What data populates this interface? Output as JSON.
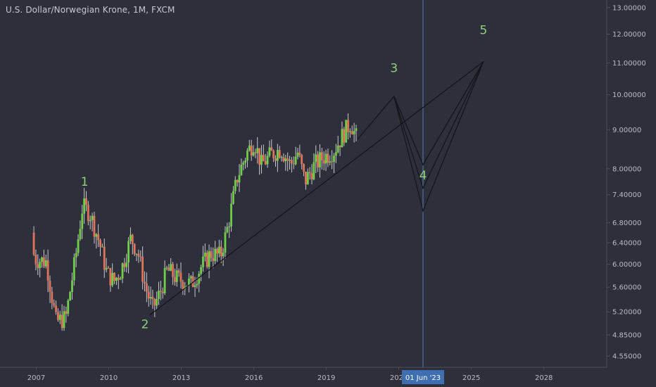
{
  "header": {
    "title": "U.S. Dollar/Norwegian Krone, 1M, FXCM"
  },
  "colors": {
    "background": "#2d2f3b",
    "axis_line": "#4a4d5c",
    "axis_text": "#b9bcc8",
    "candle_up": "#6fcf46",
    "candle_down": "#e0735a",
    "wick": "#c9c9c9",
    "wave_line": "#14161c",
    "wave_label": "#8fd17a",
    "cursor_line": "#5b7bb6",
    "cursor_badge": "#3f6fb0"
  },
  "chart_data": {
    "type": "candlestick",
    "title": "U.S. Dollar/Norwegian Krone, 1M, FXCM",
    "y_scale": "log",
    "ylim": [
      4.4,
      13.3
    ],
    "xlim": [
      2005.5,
      2030.6
    ],
    "x_ticks": [
      {
        "x": 2007,
        "label": "2007"
      },
      {
        "x": 2010,
        "label": "2010"
      },
      {
        "x": 2013,
        "label": "2013"
      },
      {
        "x": 2016,
        "label": "2016"
      },
      {
        "x": 2019,
        "label": "2019"
      },
      {
        "x": 2022,
        "label": "2022"
      },
      {
        "x": 2025,
        "label": "2025"
      },
      {
        "x": 2028,
        "label": "2028"
      }
    ],
    "y_ticks": [
      {
        "v": 13.0,
        "label": "13.00000"
      },
      {
        "v": 12.0,
        "label": "12.00000"
      },
      {
        "v": 11.0,
        "label": "11.00000"
      },
      {
        "v": 10.0,
        "label": "10.00000"
      },
      {
        "v": 9.0,
        "label": "9.00000"
      },
      {
        "v": 8.0,
        "label": "8.00000"
      },
      {
        "v": 7.4,
        "label": "7.40000"
      },
      {
        "v": 6.8,
        "label": "6.80000"
      },
      {
        "v": 6.4,
        "label": "6.40000"
      },
      {
        "v": 6.0,
        "label": "6.00000"
      },
      {
        "v": 5.6,
        "label": "5.60000"
      },
      {
        "v": 5.2,
        "label": "5.20000"
      },
      {
        "v": 4.85,
        "label": "4.85000"
      },
      {
        "v": 4.55,
        "label": "4.55000"
      }
    ],
    "price_path": [
      [
        2006.9,
        6.6
      ],
      [
        2007.0,
        6.1
      ],
      [
        2007.5,
        6.05
      ],
      [
        2007.9,
        5.05
      ],
      [
        2008.3,
        5.1
      ],
      [
        2008.7,
        6.1
      ],
      [
        2009.0,
        7.15
      ],
      [
        2009.3,
        7.0
      ],
      [
        2009.7,
        6.4
      ],
      [
        2010.0,
        5.85
      ],
      [
        2010.3,
        5.7
      ],
      [
        2010.6,
        5.9
      ],
      [
        2011.0,
        6.5
      ],
      [
        2011.3,
        6.2
      ],
      [
        2011.6,
        5.6
      ],
      [
        2011.9,
        5.25
      ],
      [
        2012.2,
        5.5
      ],
      [
        2012.5,
        5.9
      ],
      [
        2012.9,
        5.75
      ],
      [
        2013.2,
        5.7
      ],
      [
        2013.5,
        5.65
      ],
      [
        2013.9,
        5.95
      ],
      [
        2014.3,
        6.2
      ],
      [
        2014.7,
        6.15
      ],
      [
        2015.0,
        6.7
      ],
      [
        2015.4,
        7.8
      ],
      [
        2015.8,
        8.4
      ],
      [
        2016.1,
        8.7
      ],
      [
        2016.4,
        8.1
      ],
      [
        2016.8,
        8.35
      ],
      [
        2017.2,
        8.5
      ],
      [
        2017.6,
        8.1
      ],
      [
        2017.9,
        8.4
      ],
      [
        2018.2,
        7.7
      ],
      [
        2018.6,
        8.1
      ],
      [
        2019.0,
        8.3
      ],
      [
        2019.4,
        8.45
      ],
      [
        2019.8,
        8.9
      ],
      [
        2020.1,
        9.2
      ],
      [
        2020.3,
        8.8
      ]
    ],
    "wave_lines": [
      {
        "name": "trendline-2-to-5",
        "points": [
          [
            2011.7,
            5.15
          ],
          [
            2025.5,
            11.05
          ]
        ]
      },
      {
        "name": "wave-projection",
        "points": [
          [
            2020.3,
            8.75
          ],
          [
            2021.8,
            9.95
          ],
          [
            2023.0,
            8.1
          ],
          [
            2025.5,
            11.05
          ]
        ]
      },
      {
        "name": "wave-4-alt-a",
        "points": [
          [
            2021.8,
            9.95
          ],
          [
            2023.0,
            7.55
          ],
          [
            2025.5,
            11.05
          ]
        ]
      },
      {
        "name": "wave-4-alt-b",
        "points": [
          [
            2021.8,
            9.95
          ],
          [
            2023.0,
            7.05
          ],
          [
            2025.5,
            11.05
          ]
        ]
      }
    ],
    "wave_labels": [
      {
        "label": "1",
        "x": 2009.0,
        "v": 7.6
      },
      {
        "label": "2",
        "x": 2011.5,
        "v": 4.95
      },
      {
        "label": "3",
        "x": 2021.8,
        "v": 10.7
      },
      {
        "label": "4",
        "x": 2023.0,
        "v": 7.75
      },
      {
        "label": "5",
        "x": 2025.5,
        "v": 12.0
      }
    ],
    "cursor": {
      "x": 2023.0,
      "label": "01 Jun '23"
    }
  }
}
